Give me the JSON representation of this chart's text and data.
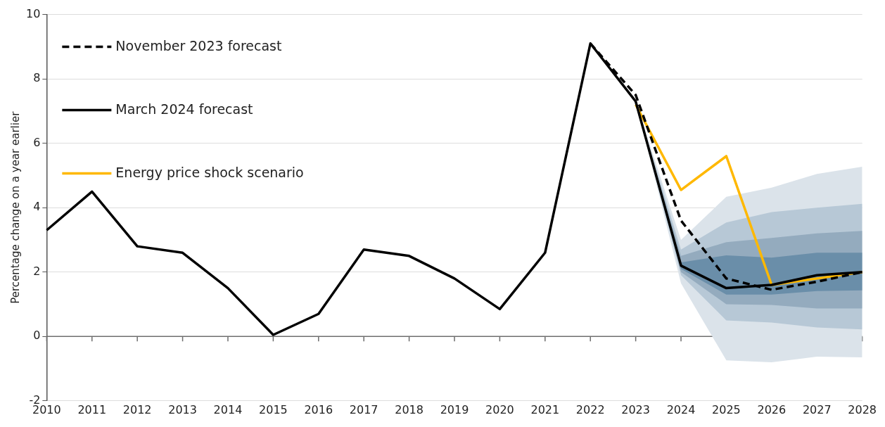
{
  "chart_data": {
    "type": "line",
    "ylabel": "Percentage change on a year earlier",
    "categories": [
      "2010",
      "2011",
      "2012",
      "2013",
      "2014",
      "2015",
      "2016",
      "2017",
      "2018",
      "2019",
      "2020",
      "2021",
      "2022",
      "2023",
      "2024",
      "2025",
      "2026",
      "2027",
      "2028"
    ],
    "series": [
      {
        "name": "November 2023 forecast",
        "color": "#000000",
        "line_style": "dashed",
        "values": [
          null,
          null,
          null,
          null,
          null,
          null,
          null,
          null,
          null,
          null,
          null,
          null,
          9.1,
          7.5,
          3.6,
          1.8,
          1.45,
          1.7,
          2.0
        ]
      },
      {
        "name": "March 2024 forecast",
        "color": "#000000",
        "line_style": "solid",
        "values": [
          3.3,
          4.5,
          2.8,
          2.6,
          1.5,
          0.05,
          0.7,
          2.7,
          2.5,
          1.8,
          0.85,
          2.6,
          9.1,
          7.3,
          2.2,
          1.5,
          1.6,
          1.9,
          2.0
        ]
      },
      {
        "name": "Energy price shock scenario",
        "color": "#ffb800",
        "line_style": "solid",
        "values": [
          null,
          null,
          null,
          null,
          null,
          null,
          null,
          null,
          null,
          null,
          null,
          null,
          null,
          7.2,
          4.55,
          5.6,
          1.6,
          1.8,
          2.0
        ]
      },
      {
        "color": "#dbe3ea",
        "values": [
          null,
          null,
          null,
          null,
          null,
          null,
          null,
          null,
          null,
          null,
          null,
          null,
          null,
          null,
          null,
          null,
          null,
          null,
          null
        ],
        "lower": [
          null,
          null,
          null,
          null,
          null,
          null,
          null,
          null,
          null,
          null,
          null,
          null,
          null,
          7.3,
          1.65,
          -0.74,
          -0.8,
          -0.63,
          -0.65
        ],
        "upper": [
          null,
          null,
          null,
          null,
          null,
          null,
          null,
          null,
          null,
          null,
          null,
          null,
          null,
          7.3,
          3.0,
          4.34,
          4.62,
          5.05,
          5.27
        ]
      },
      {
        "color": "#b7c8d6",
        "values": [
          null,
          null,
          null,
          null,
          null,
          null,
          null,
          null,
          null,
          null,
          null,
          null,
          null,
          null,
          null,
          null,
          null,
          null,
          null
        ],
        "lower": [
          null,
          null,
          null,
          null,
          null,
          null,
          null,
          null,
          null,
          null,
          null,
          null,
          null,
          7.3,
          1.9,
          0.5,
          0.43,
          0.28,
          0.22
        ],
        "upper": [
          null,
          null,
          null,
          null,
          null,
          null,
          null,
          null,
          null,
          null,
          null,
          null,
          null,
          7.3,
          2.7,
          3.54,
          3.86,
          4.0,
          4.12
        ]
      },
      {
        "color": "#94abbe",
        "values": [
          null,
          null,
          null,
          null,
          null,
          null,
          null,
          null,
          null,
          null,
          null,
          null,
          null,
          null,
          null,
          null,
          null,
          null,
          null
        ],
        "lower": [
          null,
          null,
          null,
          null,
          null,
          null,
          null,
          null,
          null,
          null,
          null,
          null,
          null,
          7.3,
          2.0,
          1.0,
          0.98,
          0.87,
          0.87
        ],
        "upper": [
          null,
          null,
          null,
          null,
          null,
          null,
          null,
          null,
          null,
          null,
          null,
          null,
          null,
          7.3,
          2.5,
          2.93,
          3.06,
          3.2,
          3.28
        ]
      },
      {
        "color": "#6a8ea9",
        "values": [
          null,
          null,
          null,
          null,
          null,
          null,
          null,
          null,
          null,
          null,
          null,
          null,
          null,
          null,
          null,
          null,
          null,
          null,
          null
        ],
        "lower": [
          null,
          null,
          null,
          null,
          null,
          null,
          null,
          null,
          null,
          null,
          null,
          null,
          null,
          7.3,
          2.1,
          1.3,
          1.3,
          1.41,
          1.43
        ],
        "upper": [
          null,
          null,
          null,
          null,
          null,
          null,
          null,
          null,
          null,
          null,
          null,
          null,
          null,
          7.3,
          2.3,
          2.52,
          2.45,
          2.6,
          2.6
        ]
      }
    ],
    "ylim": [
      -2,
      10
    ],
    "yticks": [
      -2,
      0,
      2,
      4,
      6,
      8,
      10
    ],
    "grid": "y",
    "legend": "top left",
    "marker": "none",
    "ref_lines": [
      {
        "axis": "y",
        "value": 0,
        "color": "#6e6e6e"
      }
    ]
  }
}
